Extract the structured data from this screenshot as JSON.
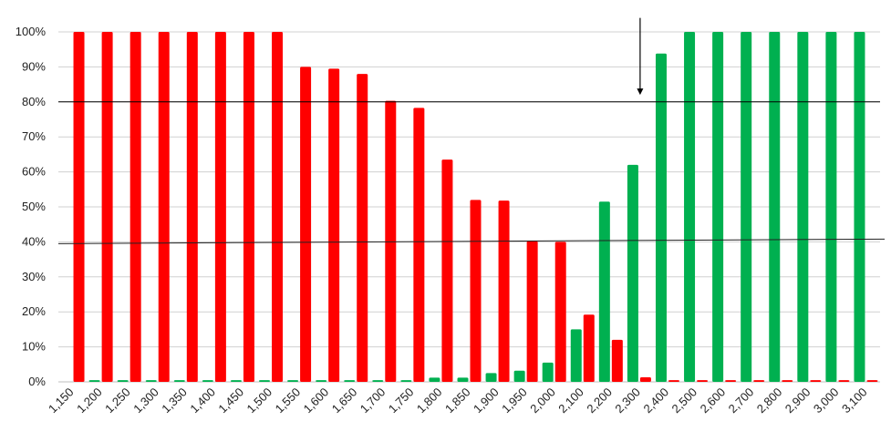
{
  "chart_data": {
    "type": "bar",
    "categories": [
      "1,150",
      "1,200",
      "1,250",
      "1,300",
      "1,350",
      "1,400",
      "1,450",
      "1,500",
      "1,550",
      "1,600",
      "1,650",
      "1,700",
      "1,750",
      "1,800",
      "1,850",
      "1,900",
      "1,950",
      "2,000",
      "2,100",
      "2,200",
      "2,300",
      "2,400",
      "2,500",
      "2,600",
      "2,700",
      "2,800",
      "2,900",
      "3,000",
      "3,100"
    ],
    "series": [
      {
        "color": "#00b050",
        "values": [
          0,
          0.5,
          0.5,
          0.5,
          0.5,
          0.5,
          0.5,
          0.5,
          0.5,
          0.5,
          0.5,
          0.5,
          0.5,
          1.2,
          1.2,
          2.5,
          3.2,
          5.5,
          15,
          51.5,
          62,
          93.8,
          100,
          100,
          100,
          100,
          100,
          100,
          100
        ]
      },
      {
        "color": "#ff0000",
        "values": [
          100,
          100,
          100,
          100,
          100,
          100,
          100,
          100,
          90,
          89.5,
          88,
          80.3,
          78.3,
          63.5,
          52,
          51.8,
          40.2,
          40,
          19.2,
          12,
          1.3,
          0.5,
          0.5,
          0.5,
          0.5,
          0.5,
          0.5,
          0.5,
          0.5
        ]
      }
    ],
    "yticks": [
      "0%",
      "10%",
      "20%",
      "30%",
      "40%",
      "50%",
      "60%",
      "70%",
      "80%",
      "90%",
      "100%"
    ],
    "ylim": [
      0,
      100
    ],
    "grid": true,
    "reference_lines": [
      {
        "type": "horizontal",
        "y": 80
      },
      {
        "type": "trend",
        "y_start": 39.5,
        "y_end": 40.8
      }
    ],
    "annotation_arrow": {
      "x_category": "2,300",
      "y_from": 104,
      "y_to": 82
    }
  }
}
